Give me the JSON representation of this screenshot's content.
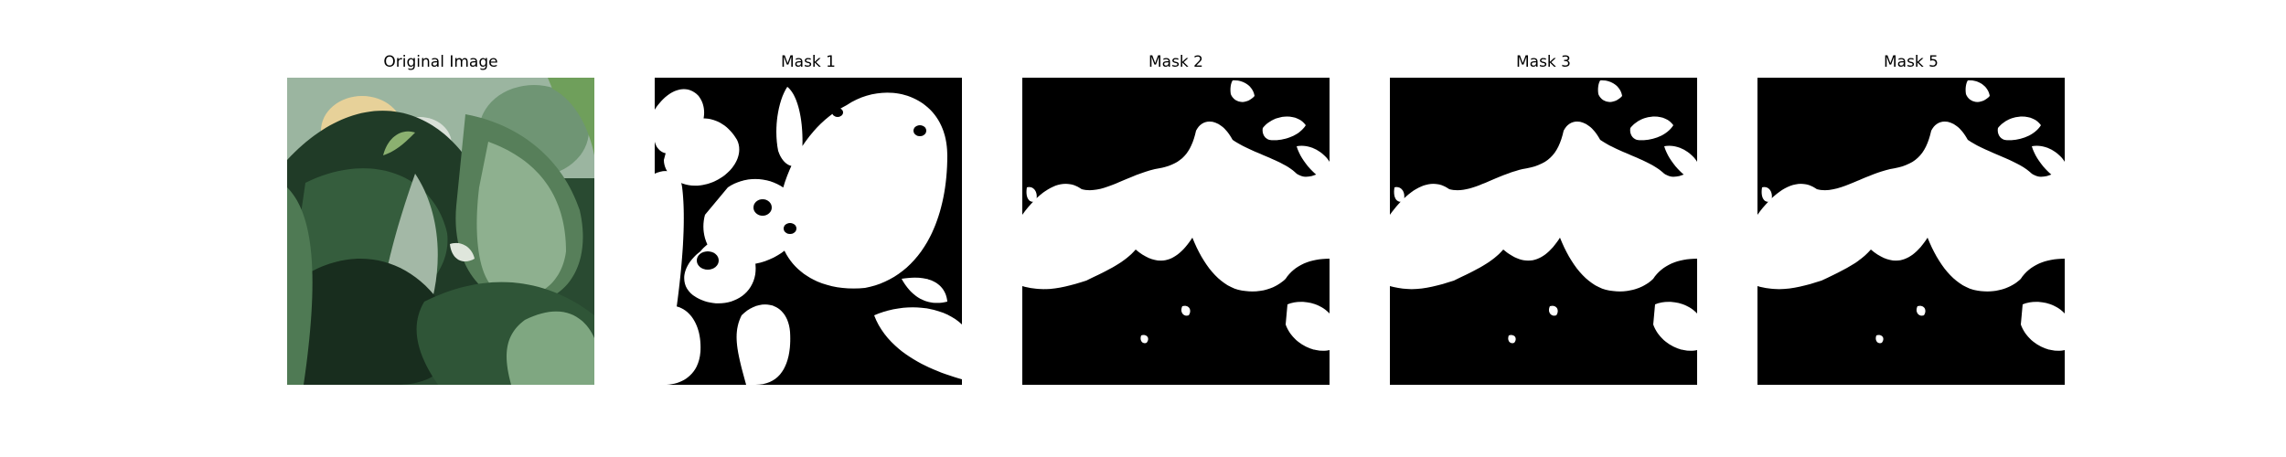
{
  "figure": {
    "panels": [
      {
        "title": "Original Image",
        "kind": "photo"
      },
      {
        "title": "Mask 1",
        "kind": "mask-a"
      },
      {
        "title": "Mask 2",
        "kind": "mask-b"
      },
      {
        "title": "Mask 3",
        "kind": "mask-b"
      },
      {
        "title": "Mask 5",
        "kind": "mask-b"
      }
    ],
    "colors": {
      "mask_background": "#000000",
      "mask_foreground": "#ffffff",
      "leaf_dark": "#1f3a25",
      "leaf_mid": "#3f6a45",
      "leaf_light": "#7fa781",
      "sky_light": "#d9e0d8",
      "warm_highlight": "#e7d199"
    }
  }
}
